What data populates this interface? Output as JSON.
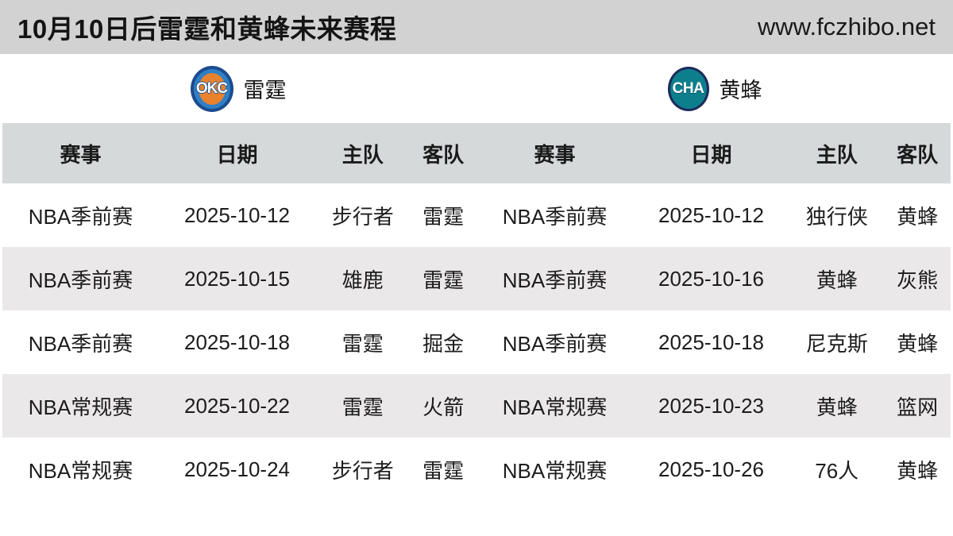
{
  "colors": {
    "titlebar-bg": "#d2d2d2",
    "header-bg": "#d5d9da",
    "stripe-bg": "#ebe8e9",
    "okc-blue": "#2f7fc5",
    "okc-navy": "#1c4b8f",
    "okc-orange": "#e8822d",
    "cha-teal": "#0d7f8c",
    "cha-navy": "#1d2a5c"
  },
  "header": {
    "title": "10月10日后雷霆和黄蜂未来赛程",
    "site": "www.fczhibo.net"
  },
  "teams": {
    "left": {
      "abbr": "OKC",
      "name": "雷霆"
    },
    "right": {
      "abbr": "CHA",
      "name": "黄蜂"
    }
  },
  "columns": {
    "event": "赛事",
    "date": "日期",
    "home": "主队",
    "away": "客队"
  },
  "left_rows": [
    {
      "event": "NBA季前赛",
      "date": "2025-10-12",
      "home": "步行者",
      "away": "雷霆"
    },
    {
      "event": "NBA季前赛",
      "date": "2025-10-15",
      "home": "雄鹿",
      "away": "雷霆"
    },
    {
      "event": "NBA季前赛",
      "date": "2025-10-18",
      "home": "雷霆",
      "away": "掘金"
    },
    {
      "event": "NBA常规赛",
      "date": "2025-10-22",
      "home": "雷霆",
      "away": "火箭"
    },
    {
      "event": "NBA常规赛",
      "date": "2025-10-24",
      "home": "步行者",
      "away": "雷霆"
    }
  ],
  "right_rows": [
    {
      "event": "NBA季前赛",
      "date": "2025-10-12",
      "home": "独行侠",
      "away": "黄蜂"
    },
    {
      "event": "NBA季前赛",
      "date": "2025-10-16",
      "home": "黄蜂",
      "away": "灰熊"
    },
    {
      "event": "NBA季前赛",
      "date": "2025-10-18",
      "home": "尼克斯",
      "away": "黄蜂"
    },
    {
      "event": "NBA常规赛",
      "date": "2025-10-23",
      "home": "黄蜂",
      "away": "篮网"
    },
    {
      "event": "NBA常规赛",
      "date": "2025-10-26",
      "home": "76人",
      "away": "黄蜂"
    }
  ]
}
